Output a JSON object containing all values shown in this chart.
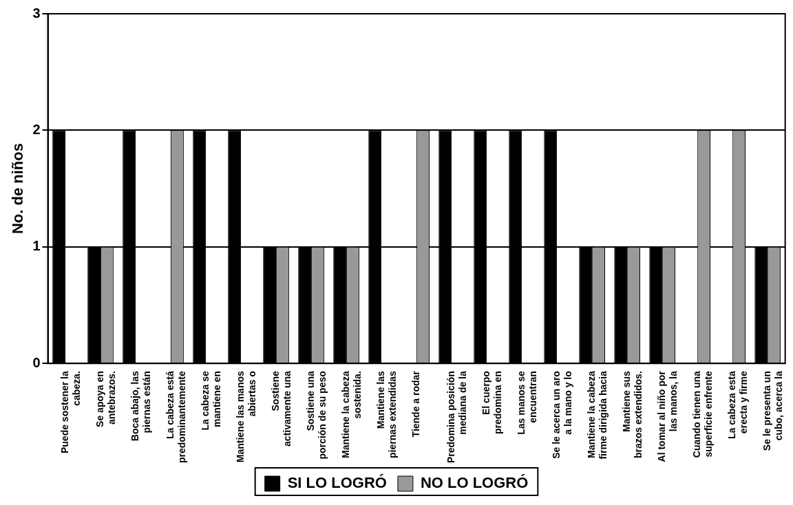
{
  "chart_data": {
    "type": "bar",
    "ylabel": "No. de niños",
    "categories": [
      "Puede sostener la\ncabeza.",
      "Se apoya en\nantebrazos.",
      "Boca abajo, las\npiernas están",
      "La cabeza está\npredominantemente",
      "La cabeza se\nmantiene en",
      "Mantiene las manos\nabiertas o",
      "Sostiene\nactivamente una",
      "Sostiene una\nporción de su peso",
      "Mantiene la cabeza\nsostenida.",
      "Mantiene las\npiernas extendidas",
      "Tiende a rodar",
      "Predomina posición\nmediana de la",
      "El cuerpo\npredomina en",
      "Las manos se\nencuentran",
      "Se le acerca un aro\na la mano y lo",
      "Mantiene la cabeza\nfirme dirigida hacia",
      "Mantiene sus\nbrazos extendidos.",
      "Al tomar al niño por\nlas manos, la",
      "Cuando tienen una\nsuperficie enfrente",
      "La cabeza esta\nerecta y firme",
      "Se le presenta un\ncubo, acerca la"
    ],
    "series": [
      {
        "name": "SI LO LOGRÓ",
        "color": "#000000",
        "values": [
          2,
          1,
          2,
          0,
          2,
          2,
          1,
          1,
          1,
          2,
          0,
          2,
          2,
          2,
          2,
          1,
          1,
          1,
          0,
          0,
          1
        ]
      },
      {
        "name": "NO LO LOGRÓ",
        "color": "#999999",
        "values": [
          0,
          1,
          0,
          2,
          0,
          0,
          1,
          1,
          1,
          0,
          2,
          0,
          0,
          0,
          0,
          1,
          1,
          1,
          2,
          2,
          1
        ]
      }
    ],
    "ylim": [
      0,
      3
    ],
    "yticks": [
      0,
      1,
      2,
      3
    ],
    "grid": "y",
    "legend": "bottom"
  }
}
